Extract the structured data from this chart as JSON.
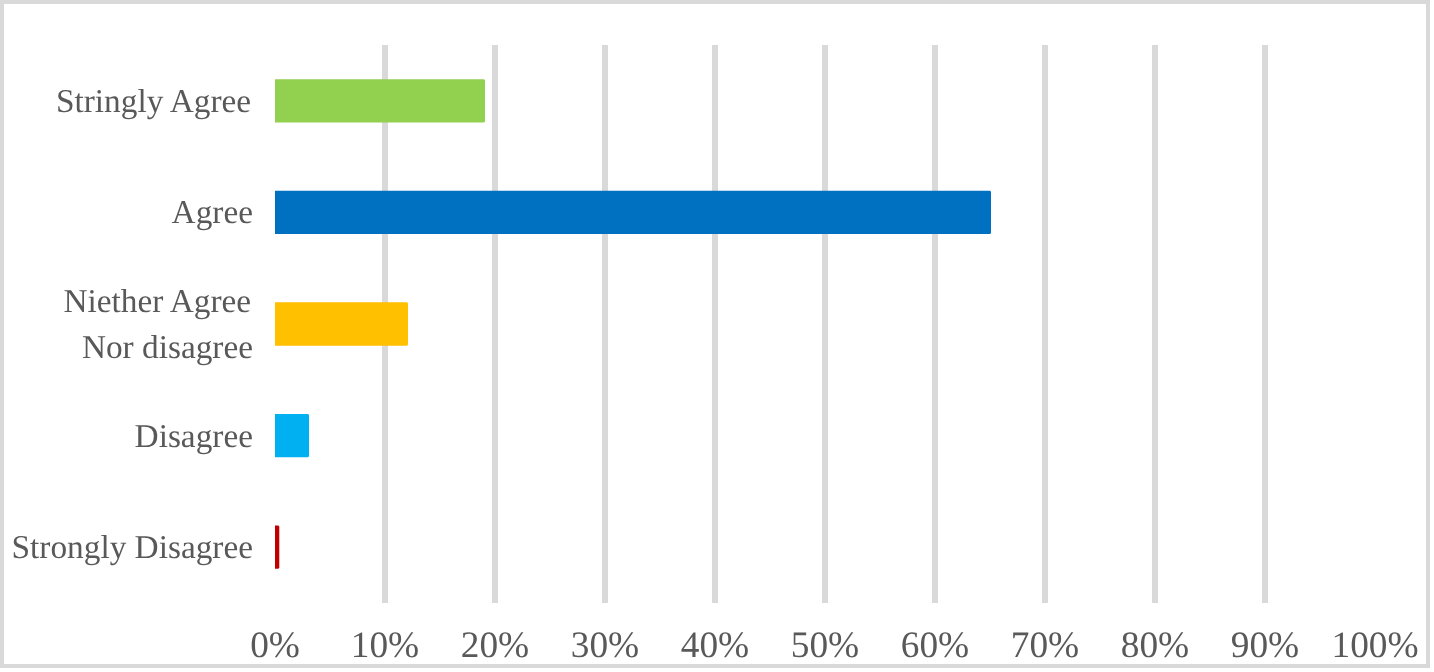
{
  "chart_data": {
    "type": "bar",
    "orientation": "horizontal",
    "categories": [
      "Stringly Agree",
      "Agree",
      "Niether Agree\nNor disagree",
      "Disagree",
      "Strongly Disagree"
    ],
    "values": [
      19,
      65,
      12,
      3,
      0.3
    ],
    "colors": [
      "#92d050",
      "#0070c0",
      "#ffc000",
      "#00b0f0",
      "#c00000"
    ],
    "xlim": [
      0,
      100
    ],
    "xticks": [
      {
        "value": 0,
        "label": "0%"
      },
      {
        "value": 10,
        "label": "10%"
      },
      {
        "value": 20,
        "label": "20%"
      },
      {
        "value": 30,
        "label": "30%"
      },
      {
        "value": 40,
        "label": "40%"
      },
      {
        "value": 50,
        "label": "50%"
      },
      {
        "value": 60,
        "label": "60%"
      },
      {
        "value": 70,
        "label": "70%"
      },
      {
        "value": 80,
        "label": "80%"
      },
      {
        "value": 90,
        "label": "90%"
      },
      {
        "value": 100,
        "label": "100%"
      }
    ],
    "grid": "x"
  }
}
